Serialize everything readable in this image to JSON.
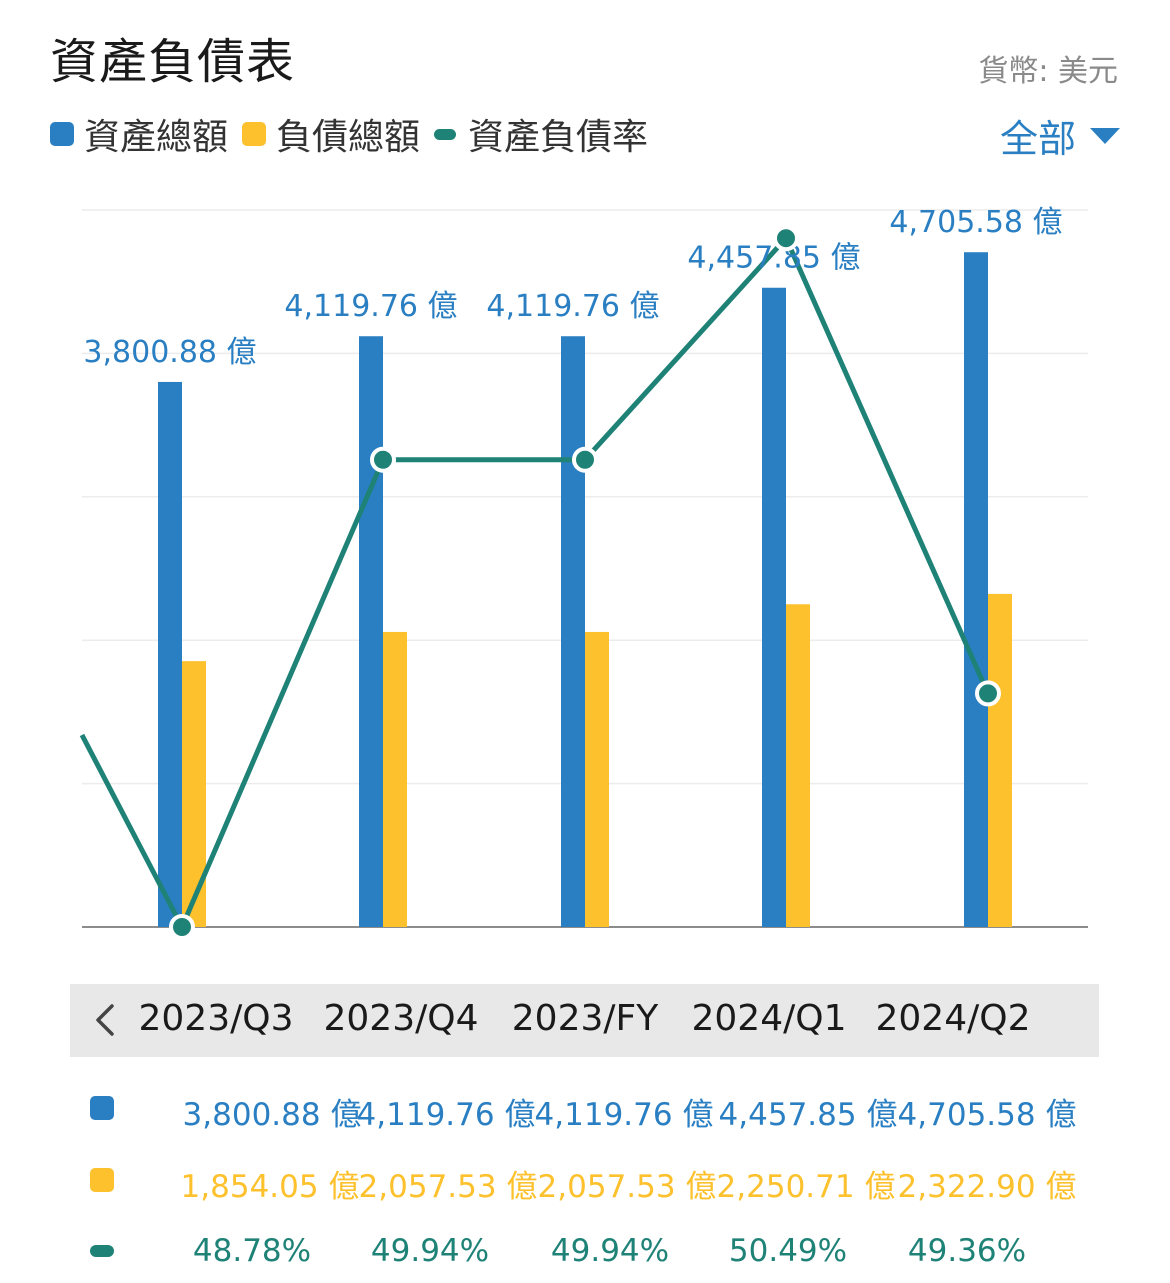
{
  "header": {
    "title": "資產負債表",
    "currency": "貨幣: 美元",
    "filter_label": "全部"
  },
  "legend": [
    {
      "label": "資產總額",
      "color": "#2a7fc3",
      "shape": "square"
    },
    {
      "label": "負債總額",
      "color": "#fcc12d",
      "shape": "square"
    },
    {
      "label": "資產負債率",
      "color": "#1f8277",
      "shape": "line"
    }
  ],
  "periods": [
    "2023/Q3",
    "2023/Q4",
    "2023/FY",
    "2024/Q1",
    "2024/Q2"
  ],
  "table": {
    "assets": [
      "3,800.88 億",
      "4,119.76 億",
      "4,119.76 億",
      "4,457.85 億",
      "4,705.58 億"
    ],
    "liabilities": [
      "1,854.05 億",
      "2,057.53 億",
      "2,057.53 億",
      "2,250.71 億",
      "2,322.90 億"
    ],
    "ratio": [
      "48.78%",
      "49.94%",
      "49.94%",
      "50.49%",
      "49.36%"
    ]
  },
  "chart_data": {
    "type": "bar",
    "categories": [
      "2023/Q3",
      "2023/Q4",
      "2023/FY",
      "2024/Q1",
      "2024/Q2"
    ],
    "series": [
      {
        "name": "資產總額",
        "values": [
          3800.88,
          4119.76,
          4119.76,
          4457.85,
          4705.58
        ],
        "unit": "億",
        "color": "#2a7fc3"
      },
      {
        "name": "負債總額",
        "values": [
          1854.05,
          2057.53,
          2057.53,
          2250.71,
          2322.9
        ],
        "unit": "億",
        "color": "#fcc12d"
      },
      {
        "name": "資產負債率",
        "values": [
          48.78,
          49.94,
          49.94,
          50.49,
          49.36
        ],
        "unit": "%",
        "type": "line",
        "color": "#1f8277"
      }
    ],
    "bar_labels": [
      "3,800.88 億",
      "4,119.76 億",
      "4,119.76 億",
      "4,457.85 億",
      "4,705.58 億"
    ],
    "ylim": [
      0,
      5000
    ],
    "ratio_ylim": [
      48.78,
      50.56
    ],
    "grid": true,
    "legend_position": "top-left"
  }
}
